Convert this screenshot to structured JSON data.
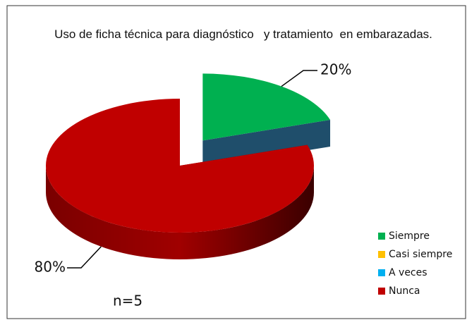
{
  "chart_data": {
    "type": "pie",
    "title": "Uso de ficha técnica para diagnóstico   y tratamiento  en embarazadas.",
    "categories": [
      "Siempre",
      "Casi siempre",
      "A veces",
      "Nunca"
    ],
    "values": [
      20,
      0,
      0,
      80
    ],
    "value_labels": [
      "20%",
      null,
      null,
      "80%"
    ],
    "colors": [
      "#00b050",
      "#ffc000",
      "#00b0f0",
      "#c00000"
    ],
    "annotation": "n=5",
    "legend": "right"
  }
}
